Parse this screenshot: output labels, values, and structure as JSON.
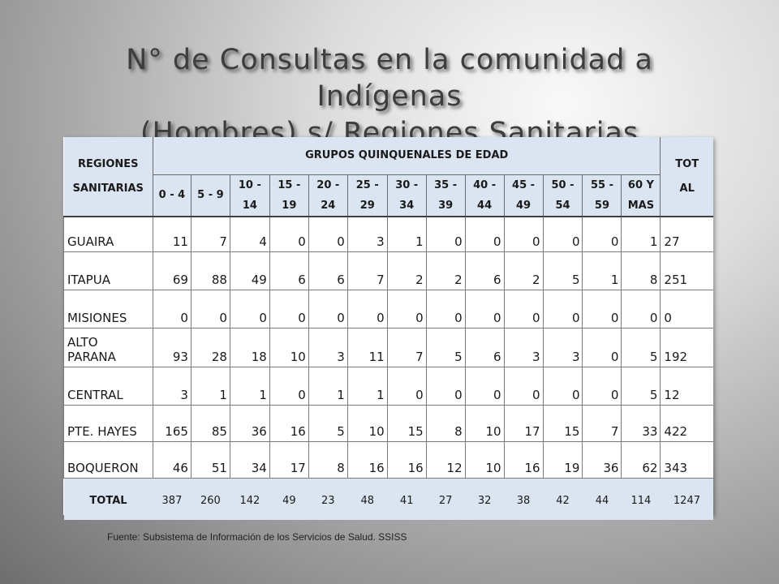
{
  "slide": {
    "title_line1": "N° de Consultas en la comunidad a Indígenas",
    "title_line2": "(Hombres) s/ Regiones Sanitarias",
    "source": "Fuente: Subsistema de Información de los Servicios de Salud. SSISS"
  },
  "table": {
    "region_header": [
      "REGIONES",
      "SANITARIAS"
    ],
    "group_header": "GRUPOS QUINQUENALES DE EDAD",
    "total_header": [
      "TOT",
      "AL"
    ],
    "age_groups": [
      [
        "0 - 4",
        ""
      ],
      [
        "5 - 9",
        ""
      ],
      [
        "10 -",
        "14"
      ],
      [
        "15 -",
        "19"
      ],
      [
        "20 -",
        "24"
      ],
      [
        "25 -",
        "29"
      ],
      [
        "30 -",
        "34"
      ],
      [
        "35 -",
        "39"
      ],
      [
        "40 -",
        "44"
      ],
      [
        "45 -",
        "49"
      ],
      [
        "50 -",
        "54"
      ],
      [
        "55 -",
        "59"
      ],
      [
        "60 Y",
        "MAS"
      ]
    ],
    "rows": [
      {
        "region": [
          "",
          "GUAIRA"
        ],
        "values": [
          "11",
          "7",
          "4",
          "0",
          "0",
          "3",
          "1",
          "0",
          "0",
          "0",
          "0",
          "0",
          "1"
        ],
        "total": "27"
      },
      {
        "region": [
          "",
          "ITAPUA"
        ],
        "values": [
          "69",
          "88",
          "49",
          "6",
          "6",
          "7",
          "2",
          "2",
          "6",
          "2",
          "5",
          "1",
          "8"
        ],
        "total": "251"
      },
      {
        "region": [
          "",
          "MISIONES"
        ],
        "values": [
          "0",
          "0",
          "0",
          "0",
          "0",
          "0",
          "0",
          "0",
          "0",
          "0",
          "0",
          "0",
          "0"
        ],
        "total": "0"
      },
      {
        "region": [
          "ALTO",
          "PARANA"
        ],
        "values": [
          "93",
          "28",
          "18",
          "10",
          "3",
          "11",
          "7",
          "5",
          "6",
          "3",
          "3",
          "0",
          "5"
        ],
        "total": "192"
      },
      {
        "region": [
          "",
          "CENTRAL"
        ],
        "values": [
          "3",
          "1",
          "1",
          "0",
          "1",
          "1",
          "0",
          "0",
          "0",
          "0",
          "0",
          "0",
          "5"
        ],
        "total": "12"
      },
      {
        "region": [
          "",
          "PTE. HAYES"
        ],
        "values": [
          "165",
          "85",
          "36",
          "16",
          "5",
          "10",
          "15",
          "8",
          "10",
          "17",
          "15",
          "7",
          "33"
        ],
        "total": "422"
      },
      {
        "region": [
          "",
          "BOQUERON"
        ],
        "values": [
          "46",
          "51",
          "34",
          "17",
          "8",
          "16",
          "16",
          "12",
          "10",
          "16",
          "19",
          "36",
          "62"
        ],
        "total": "343"
      }
    ],
    "total_row": {
      "label": "TOTAL",
      "values": [
        "387",
        "260",
        "142",
        "49",
        "23",
        "48",
        "41",
        "27",
        "32",
        "38",
        "42",
        "44",
        "114"
      ],
      "total": "1247"
    }
  }
}
